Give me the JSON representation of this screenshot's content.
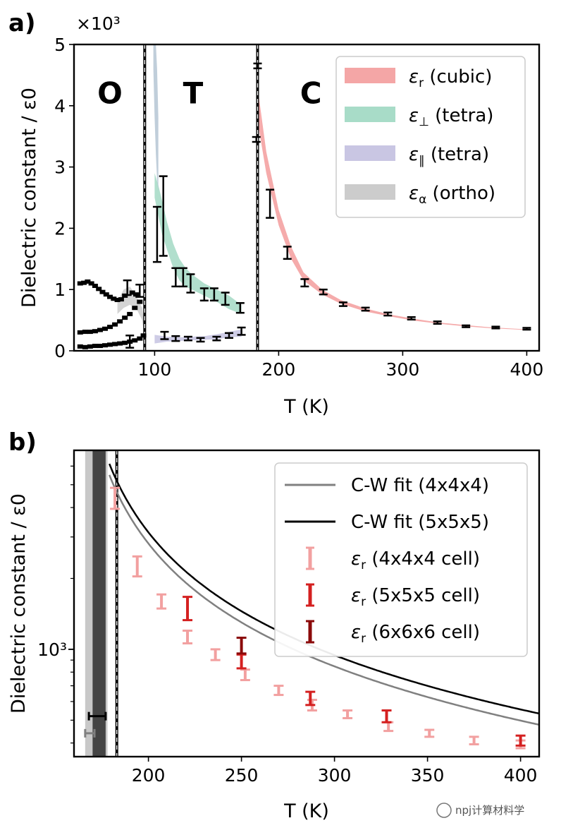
{
  "chart_data": [
    {
      "id": "a",
      "type": "line",
      "panel_label": "a)",
      "xlabel": "T (K)",
      "ylabel": "Dielectric constant / ε0",
      "y_multiplier": "×10³",
      "xlim": [
        35,
        410
      ],
      "ylim": [
        0,
        5000
      ],
      "xticks": [
        100,
        200,
        300,
        400
      ],
      "xtick_labels": [
        "100",
        "200",
        "300",
        "400"
      ],
      "yticks": [
        0,
        1000,
        2000,
        3000,
        4000,
        5000
      ],
      "ytick_labels": [
        "0",
        "1",
        "2",
        "3",
        "4",
        "5"
      ],
      "phase_boundaries": [
        92,
        183
      ],
      "phase_labels": [
        {
          "text": "O",
          "x": 64,
          "y": 4200
        },
        {
          "text": "T",
          "x": 131,
          "y": 4200
        },
        {
          "text": "C",
          "x": 226,
          "y": 4200
        }
      ],
      "legend": [
        {
          "prefix": "ε",
          "sub": "r",
          "suffix": " (cubic)",
          "color": "#f4a6a6"
        },
        {
          "prefix": "ε",
          "sub": "⊥",
          "suffix": " (tetra)",
          "color": "#a8dcc8"
        },
        {
          "prefix": "ε",
          "sub": "∥",
          "suffix": " (tetra)",
          "color": "#c9c6e3"
        },
        {
          "prefix": "ε",
          "sub": "α",
          "suffix": " (ortho)",
          "color": "#cccccc"
        }
      ],
      "bands": [
        {
          "name": "eps-r-cubic-band",
          "color": "#f4a6a6",
          "opacity": 0.95,
          "x": [
            183,
            190,
            200,
            210,
            220,
            235,
            250,
            270,
            290,
            310,
            330,
            350,
            370,
            400
          ],
          "lo": [
            3750,
            2900,
            2050,
            1500,
            1150,
            920,
            770,
            640,
            560,
            490,
            440,
            400,
            370,
            340
          ],
          "hi": [
            4300,
            3250,
            2300,
            1700,
            1280,
            1000,
            830,
            690,
            590,
            520,
            460,
            420,
            385,
            350
          ]
        },
        {
          "name": "eps-perp-tetra-band",
          "color": "#a8dcc8",
          "opacity": 0.9,
          "x": [
            100,
            103,
            106,
            110,
            115,
            120,
            125,
            130,
            140,
            150,
            160,
            170
          ],
          "lo": [
            2500,
            2200,
            1900,
            1650,
            1350,
            1150,
            1050,
            1000,
            900,
            800,
            680,
            600
          ],
          "hi": [
            2900,
            2700,
            2450,
            2100,
            1750,
            1500,
            1350,
            1250,
            1100,
            1000,
            900,
            750
          ]
        },
        {
          "name": "eps-par-tetra-band",
          "color": "#c9c6e3",
          "opacity": 0.9,
          "x": [
            100,
            110,
            120,
            130,
            140,
            150,
            160,
            170
          ],
          "lo": [
            120,
            150,
            160,
            170,
            180,
            190,
            220,
            230
          ],
          "hi": [
            260,
            230,
            220,
            230,
            240,
            270,
            310,
            350
          ]
        },
        {
          "name": "eps-alpha-ortho-band",
          "color": "#cccccc",
          "opacity": 0.85,
          "x": [
            70,
            75,
            80,
            85,
            90,
            92
          ],
          "lo": [
            600,
            700,
            750,
            700,
            500,
            200
          ],
          "hi": [
            800,
            1000,
            1050,
            900,
            700,
            400
          ]
        },
        {
          "name": "eps-tetra-upper-band",
          "color": "#b9c9d6",
          "opacity": 0.9,
          "x": [
            99,
            100,
            101,
            102,
            103
          ],
          "lo": [
            4600,
            3800,
            3200,
            2800,
            2600
          ],
          "hi": [
            5000,
            5000,
            5000,
            4600,
            3800
          ]
        }
      ],
      "errorbars": [
        {
          "x": 183,
          "y": 4650,
          "err": 40
        },
        {
          "x": 182,
          "y": 3450,
          "err": 40
        },
        {
          "x": 193,
          "y": 2400,
          "err": 230
        },
        {
          "x": 207,
          "y": 1600,
          "err": 100
        },
        {
          "x": 221,
          "y": 1110,
          "err": 60
        },
        {
          "x": 236,
          "y": 960,
          "err": 40
        },
        {
          "x": 252,
          "y": 760,
          "err": 30
        },
        {
          "x": 270,
          "y": 680,
          "err": 25
        },
        {
          "x": 288,
          "y": 600,
          "err": 25
        },
        {
          "x": 307,
          "y": 530,
          "err": 20
        },
        {
          "x": 328,
          "y": 460,
          "err": 20
        },
        {
          "x": 351,
          "y": 400,
          "err": 15
        },
        {
          "x": 375,
          "y": 380,
          "err": 15
        },
        {
          "x": 400,
          "y": 360,
          "err": 15
        },
        {
          "x": 102,
          "y": 1900,
          "err": 450
        },
        {
          "x": 107,
          "y": 2200,
          "err": 650
        },
        {
          "x": 117,
          "y": 1200,
          "err": 150
        },
        {
          "x": 123,
          "y": 1200,
          "err": 150
        },
        {
          "x": 129,
          "y": 1100,
          "err": 150
        },
        {
          "x": 140,
          "y": 920,
          "err": 100
        },
        {
          "x": 148,
          "y": 920,
          "err": 100
        },
        {
          "x": 157,
          "y": 850,
          "err": 100
        },
        {
          "x": 169,
          "y": 700,
          "err": 80
        },
        {
          "x": 108,
          "y": 250,
          "err": 60
        },
        {
          "x": 117,
          "y": 200,
          "err": 40
        },
        {
          "x": 127,
          "y": 200,
          "err": 30
        },
        {
          "x": 137,
          "y": 180,
          "err": 30
        },
        {
          "x": 150,
          "y": 200,
          "err": 30
        },
        {
          "x": 160,
          "y": 250,
          "err": 40
        },
        {
          "x": 170,
          "y": 320,
          "err": 60
        },
        {
          "x": 78,
          "y": 1030,
          "err": 120
        },
        {
          "x": 88,
          "y": 980,
          "err": 100
        },
        {
          "x": 80,
          "y": 150,
          "err": 100
        }
      ],
      "marker_series": [
        {
          "name": "ortho-upper-series",
          "x": [
            40,
            43,
            46,
            49,
            52,
            55,
            58,
            61,
            64,
            67,
            70,
            73,
            76,
            82,
            85
          ],
          "y": [
            1100,
            1110,
            1130,
            1100,
            1060,
            1010,
            960,
            920,
            880,
            850,
            830,
            840,
            900,
            950,
            920
          ]
        },
        {
          "name": "ortho-middle-series",
          "x": [
            40,
            44,
            48,
            52,
            56,
            60,
            64,
            68,
            72,
            76,
            80,
            84,
            88
          ],
          "y": [
            300,
            310,
            310,
            320,
            340,
            360,
            390,
            430,
            480,
            540,
            600,
            700,
            800
          ]
        },
        {
          "name": "ortho-lower-series",
          "x": [
            40,
            44,
            48,
            52,
            56,
            60,
            64,
            68,
            72,
            76,
            80,
            84,
            88,
            91
          ],
          "y": [
            70,
            60,
            70,
            80,
            80,
            90,
            100,
            110,
            120,
            130,
            150,
            170,
            200,
            250
          ]
        }
      ]
    },
    {
      "id": "b",
      "type": "line",
      "panel_label": "b)",
      "xlabel": "T (K)",
      "ylabel": "Dielectric constant / ε0",
      "yscale": "log",
      "xlim": [
        160,
        410
      ],
      "ylim": [
        350,
        7000
      ],
      "xticks": [
        200,
        250,
        300,
        350,
        400
      ],
      "xtick_labels": [
        "200",
        "250",
        "300",
        "350",
        "400"
      ],
      "ymajor_tick": {
        "value": 1000,
        "label": "10³"
      },
      "yminor_ticks": [
        400,
        500,
        600,
        700,
        800,
        900,
        2000,
        3000,
        4000,
        5000,
        6000
      ],
      "phase_boundary": 183,
      "shaded_columns": [
        {
          "x0": 166,
          "x1": 178,
          "color": "#c8c8c8"
        },
        {
          "x0": 170,
          "x1": 177,
          "color": "#444444"
        }
      ],
      "legend": [
        {
          "kind": "line",
          "label": "C-W fit (4x4x4)",
          "color": "#808080"
        },
        {
          "kind": "line",
          "label": "C-W fit (5x5x5)",
          "color": "#000000"
        },
        {
          "kind": "errorbar",
          "prefix": "ε",
          "sub": "r",
          "suffix": " (4x4x4 cell)",
          "color": "#f2a0a0"
        },
        {
          "kind": "errorbar",
          "prefix": "ε",
          "sub": "r",
          "suffix": " (5x5x5 cell)",
          "color": "#d42020"
        },
        {
          "kind": "errorbar",
          "prefix": "ε",
          "sub": "r",
          "suffix": " (6x6x6 cell)",
          "color": "#8b0a0a"
        }
      ],
      "fits": [
        {
          "name": "cw-fit-4x4x4",
          "color": "#808080",
          "C": 121000,
          "T0": 157,
          "x_start": 179
        },
        {
          "name": "cw-fit-5x5x5",
          "color": "#000000",
          "C": 135000,
          "T0": 157,
          "x_start": 179
        }
      ],
      "series": [
        {
          "name": "eps-r-4x4x4",
          "color": "#f2a0a0",
          "points": [
            {
              "x": 182,
              "y": 4400,
              "err": 450
            },
            {
              "x": 194,
              "y": 2260,
              "err": 220
            },
            {
              "x": 207,
              "y": 1600,
              "err": 110
            },
            {
              "x": 221,
              "y": 1130,
              "err": 70
            },
            {
              "x": 236,
              "y": 950,
              "err": 50
            },
            {
              "x": 252,
              "y": 780,
              "err": 40
            },
            {
              "x": 270,
              "y": 670,
              "err": 30
            },
            {
              "x": 288,
              "y": 580,
              "err": 30
            },
            {
              "x": 307,
              "y": 530,
              "err": 20
            },
            {
              "x": 329,
              "y": 470,
              "err": 20
            },
            {
              "x": 351,
              "y": 440,
              "err": 15
            },
            {
              "x": 375,
              "y": 410,
              "err": 15
            },
            {
              "x": 400,
              "y": 395,
              "err": 15
            }
          ]
        },
        {
          "name": "eps-r-5x5x5",
          "color": "#d42020",
          "points": [
            {
              "x": 221,
              "y": 1500,
              "err": 170
            },
            {
              "x": 250,
              "y": 890,
              "err": 60
            },
            {
              "x": 287,
              "y": 620,
              "err": 40
            },
            {
              "x": 328,
              "y": 520,
              "err": 30
            },
            {
              "x": 400,
              "y": 410,
              "err": 20
            }
          ]
        },
        {
          "name": "eps-r-6x6x6",
          "color": "#8b0a0a",
          "points": [
            {
              "x": 250,
              "y": 1040,
              "err": 80
            }
          ]
        }
      ],
      "horizontal_errorbars": [
        {
          "y": 520,
          "x0": 168,
          "x1": 177,
          "color": "#000000"
        },
        {
          "y": 440,
          "x0": 166,
          "x1": 171,
          "color": "#808080"
        }
      ]
    }
  ],
  "watermark": "npj计算材料学"
}
